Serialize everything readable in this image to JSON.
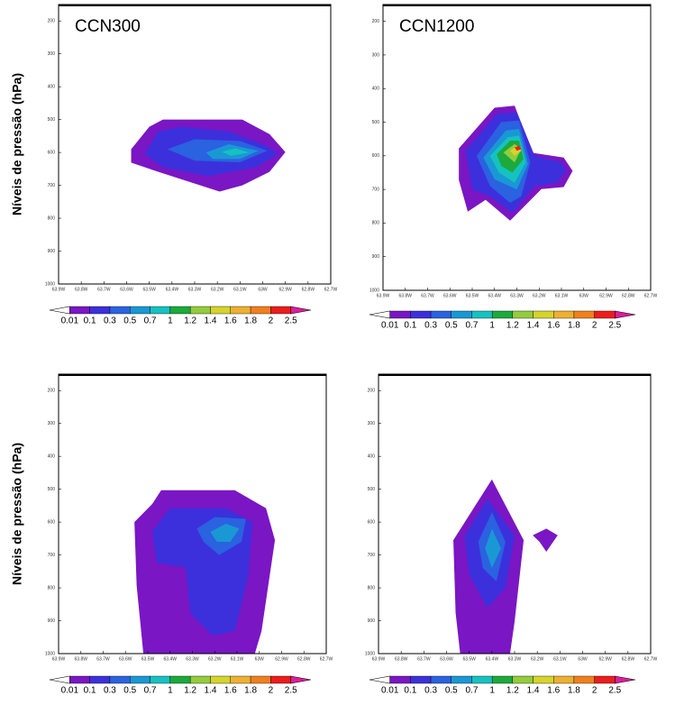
{
  "axes": {
    "xlim": [
      -63.9,
      -62.7
    ],
    "ylim": [
      1000,
      150
    ],
    "xticks": [
      {
        "value": -63.9,
        "label": "63.9W"
      },
      {
        "value": -63.8,
        "label": "63.8W"
      },
      {
        "value": -63.7,
        "label": "63.7W"
      },
      {
        "value": -63.6,
        "label": "63.6W"
      },
      {
        "value": -63.5,
        "label": "63.5W"
      },
      {
        "value": -63.4,
        "label": "63.4W"
      },
      {
        "value": -63.3,
        "label": "63.3W"
      },
      {
        "value": -63.2,
        "label": "63.2W"
      },
      {
        "value": -63.1,
        "label": "63.1W"
      },
      {
        "value": -63,
        "label": "63W"
      },
      {
        "value": -62.9,
        "label": "62.9W"
      },
      {
        "value": -62.8,
        "label": "62.8W"
      },
      {
        "value": -62.7,
        "label": "62.7W"
      }
    ],
    "yticks": [
      200,
      300,
      400,
      500,
      600,
      700,
      800,
      900,
      1000
    ]
  },
  "colorbar": {
    "levels": [
      0.01,
      0.1,
      0.3,
      0.5,
      0.7,
      1,
      1.2,
      1.4,
      1.6,
      1.8,
      2,
      2.5
    ],
    "colors": [
      "#ffffff",
      "#7a16c4",
      "#3c30dc",
      "#2a62e0",
      "#1a98d4",
      "#16c2c0",
      "#1caa3c",
      "#94cc3c",
      "#d4d42c",
      "#eeb030",
      "#f0801e",
      "#ee1c1c",
      "#e01c9c"
    ]
  },
  "chart_data": [
    {
      "type": "contour",
      "title": "CCN300",
      "ylabel": "Níveis de pressão (hPa)",
      "contours": [
        {
          "level": 0.01,
          "points": [
            [
              -63.58,
              590
            ],
            [
              -63.5,
              522
            ],
            [
              -63.44,
              500
            ],
            [
              -63.09,
              500
            ],
            [
              -62.97,
              544
            ],
            [
              -62.9,
              599
            ],
            [
              -62.97,
              659
            ],
            [
              -63.09,
              700
            ],
            [
              -63.19,
              719
            ],
            [
              -63.46,
              659
            ],
            [
              -63.58,
              631
            ]
          ]
        },
        {
          "level": 0.1,
          "points": [
            [
              -63.52,
              604
            ],
            [
              -63.46,
              536
            ],
            [
              -63.36,
              522
            ],
            [
              -63.15,
              536
            ],
            [
              -62.99,
              577
            ],
            [
              -62.93,
              604
            ],
            [
              -63.03,
              645
            ],
            [
              -63.24,
              672
            ],
            [
              -63.44,
              645
            ]
          ]
        },
        {
          "level": 0.3,
          "points": [
            [
              -63.42,
              590
            ],
            [
              -63.3,
              560
            ],
            [
              -63.1,
              565
            ],
            [
              -62.98,
              595
            ],
            [
              -63.1,
              630
            ],
            [
              -63.3,
              625
            ]
          ]
        },
        {
          "level": 0.5,
          "points": [
            [
              -63.25,
              600
            ],
            [
              -63.15,
              575
            ],
            [
              -63.02,
              595
            ],
            [
              -63.1,
              620
            ],
            [
              -63.22,
              620
            ]
          ]
        },
        {
          "level": 0.7,
          "points": [
            [
              -63.18,
              598
            ],
            [
              -63.12,
              588
            ],
            [
              -63.06,
              600
            ],
            [
              -63.14,
              610
            ]
          ]
        }
      ]
    },
    {
      "type": "contour",
      "title": "CCN1200",
      "contours": [
        {
          "level": 0.01,
          "points": [
            [
              -63.56,
              578
            ],
            [
              -63.4,
              457
            ],
            [
              -63.31,
              451
            ],
            [
              -63.23,
              591
            ],
            [
              -63.09,
              605
            ],
            [
              -63.05,
              645
            ],
            [
              -63.09,
              693
            ],
            [
              -63.19,
              699
            ],
            [
              -63.29,
              766
            ],
            [
              -63.33,
              793
            ],
            [
              -63.44,
              731
            ],
            [
              -63.52,
              766
            ],
            [
              -63.56,
              672
            ]
          ]
        },
        {
          "level": 0.1,
          "points": [
            [
              -63.53,
              585
            ],
            [
              -63.39,
              475
            ],
            [
              -63.3,
              470
            ],
            [
              -63.22,
              600
            ],
            [
              -63.1,
              620
            ],
            [
              -63.08,
              645
            ],
            [
              -63.12,
              680
            ],
            [
              -63.22,
              690
            ],
            [
              -63.32,
              770
            ],
            [
              -63.42,
              720
            ],
            [
              -63.5,
              700
            ]
          ]
        },
        {
          "level": 0.3,
          "points": [
            [
              -63.48,
              600
            ],
            [
              -63.37,
              500
            ],
            [
              -63.29,
              495
            ],
            [
              -63.24,
              620
            ],
            [
              -63.28,
              720
            ],
            [
              -63.33,
              740
            ],
            [
              -63.42,
              690
            ]
          ]
        },
        {
          "level": 0.5,
          "points": [
            [
              -63.45,
              605
            ],
            [
              -63.35,
              525
            ],
            [
              -63.29,
              520
            ],
            [
              -63.25,
              625
            ],
            [
              -63.3,
              700
            ],
            [
              -63.4,
              670
            ]
          ]
        },
        {
          "level": 0.7,
          "points": [
            [
              -63.42,
              600
            ],
            [
              -63.34,
              545
            ],
            [
              -63.29,
              540
            ],
            [
              -63.26,
              620
            ],
            [
              -63.31,
              680
            ],
            [
              -63.38,
              650
            ]
          ]
        },
        {
          "level": 1,
          "points": [
            [
              -63.39,
              595
            ],
            [
              -63.33,
              555
            ],
            [
              -63.29,
              555
            ],
            [
              -63.27,
              610
            ],
            [
              -63.32,
              650
            ],
            [
              -63.37,
              630
            ]
          ]
        },
        {
          "level": 1.2,
          "points": [
            [
              -63.36,
              590
            ],
            [
              -63.31,
              565
            ],
            [
              -63.28,
              580
            ],
            [
              -63.31,
              620
            ]
          ]
        },
        {
          "level": 1.4,
          "points": [
            [
              -63.33,
              585
            ],
            [
              -63.3,
              570
            ],
            [
              -63.28,
              585
            ],
            [
              -63.31,
              600
            ]
          ]
        },
        {
          "level": 2,
          "points": [
            [
              -63.31,
              575
            ],
            [
              -63.29,
              570
            ],
            [
              -63.28,
              580
            ],
            [
              -63.3,
              585
            ]
          ]
        }
      ]
    },
    {
      "type": "contour",
      "ylabel": "Níveis de pressão (hPa)",
      "contours": [
        {
          "level": 0.01,
          "points": [
            [
              -63.56,
              600
            ],
            [
              -63.48,
              545
            ],
            [
              -63.44,
              503
            ],
            [
              -63.11,
              503
            ],
            [
              -62.97,
              558
            ],
            [
              -62.93,
              655
            ],
            [
              -62.99,
              931
            ],
            [
              -63.02,
              1000
            ],
            [
              -63.52,
              1000
            ],
            [
              -63.55,
              793
            ]
          ]
        },
        {
          "level": 0.1,
          "points": [
            [
              -63.48,
              627
            ],
            [
              -63.4,
              558
            ],
            [
              -63.15,
              558
            ],
            [
              -63.03,
              600
            ],
            [
              -63.05,
              765
            ],
            [
              -63.11,
              931
            ],
            [
              -63.21,
              945
            ],
            [
              -63.31,
              876
            ],
            [
              -63.33,
              738
            ],
            [
              -63.46,
              724
            ]
          ]
        },
        {
          "level": 0.3,
          "points": [
            [
              -63.28,
              620
            ],
            [
              -63.2,
              585
            ],
            [
              -63.06,
              590
            ],
            [
              -63.08,
              660
            ],
            [
              -63.18,
              700
            ],
            [
              -63.25,
              660
            ]
          ]
        },
        {
          "level": 0.5,
          "points": [
            [
              -63.22,
              630
            ],
            [
              -63.15,
              605
            ],
            [
              -63.09,
              620
            ],
            [
              -63.13,
              660
            ],
            [
              -63.19,
              660
            ]
          ]
        }
      ]
    },
    {
      "type": "contour",
      "contours": [
        {
          "level": 0.01,
          "points": [
            [
              -63.57,
              655
            ],
            [
              -63.4,
              470
            ],
            [
              -63.26,
              655
            ],
            [
              -63.3,
              903
            ],
            [
              -63.32,
              1000
            ],
            [
              -63.54,
              1000
            ],
            [
              -63.56,
              876
            ]
          ]
        },
        {
          "level": 0.01,
          "points": [
            [
              -63.22,
              640
            ],
            [
              -63.16,
              620
            ],
            [
              -63.11,
              640
            ],
            [
              -63.16,
              690
            ],
            [
              -63.19,
              660
            ]
          ]
        },
        {
          "level": 0.1,
          "points": [
            [
              -63.52,
              640
            ],
            [
              -63.42,
              530
            ],
            [
              -63.3,
              640
            ],
            [
              -63.34,
              800
            ],
            [
              -63.42,
              860
            ],
            [
              -63.5,
              760
            ]
          ]
        },
        {
          "level": 0.3,
          "points": [
            [
              -63.46,
              660
            ],
            [
              -63.4,
              570
            ],
            [
              -63.34,
              660
            ],
            [
              -63.38,
              780
            ],
            [
              -63.44,
              740
            ]
          ]
        },
        {
          "level": 0.5,
          "points": [
            [
              -63.43,
              680
            ],
            [
              -63.4,
              620
            ],
            [
              -63.36,
              680
            ],
            [
              -63.4,
              740
            ]
          ]
        }
      ]
    }
  ]
}
